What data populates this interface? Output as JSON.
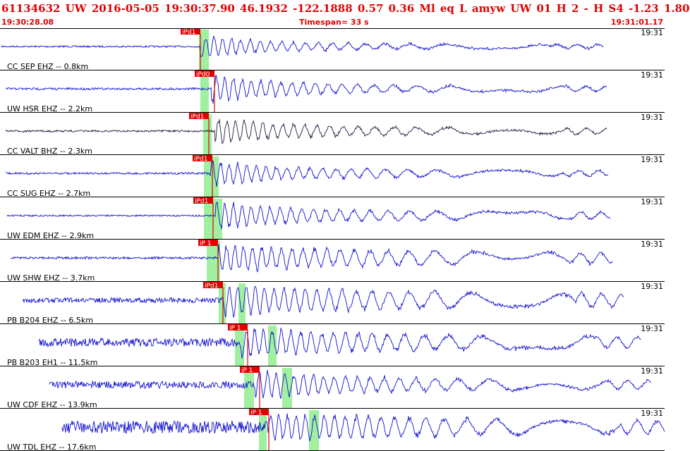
{
  "header": {
    "title": "61134632 UW 2016-05-05 19:30:37.90   46.1932 -122.1888   0.57  0.36 Ml  eq  L amyw    UW 01  H   2  -  H S4   -1.23  1.80",
    "start_time": "19:30:28.08",
    "timespan": "Timespan=  33 s",
    "end_time": "19:31:01.17"
  },
  "colors": {
    "trace": "#1010d0",
    "trace_alt": "#202040",
    "label": "#000000",
    "pick": "#e00000",
    "highlight": "#a0f0a0",
    "border": "#000000"
  },
  "traces": [
    {
      "label": "CC SEP EHZ -- 0.8km",
      "pick": "iPd1",
      "time_label": "19:31"
    },
    {
      "label": "UW HSR EHZ -- 2.2km",
      "pick": "iPd0",
      "time_label": "19:31"
    },
    {
      "label": "CC VALT BHZ -- 2.3km",
      "pick": "iPd1",
      "time_label": "19:31"
    },
    {
      "label": "CC SUG EHZ -- 2.7km",
      "pick": "iPd1",
      "time_label": "19:31"
    },
    {
      "label": "UW EDM EHZ -- 2.9km",
      "pick": "iPd1",
      "time_label": "19:31"
    },
    {
      "label": "UW SHW EHZ -- 3.7km",
      "pick": "iP 1",
      "time_label": "19:31"
    },
    {
      "label": "PB B204 EHZ -- 6.5km",
      "pick": "iPd1",
      "time_label": "19:31"
    },
    {
      "label": "PB B203 EH1 -- 11.5km",
      "pick": "iP 1",
      "time_label": "19:31"
    },
    {
      "label": "UW CDF EHZ -- 13.9km",
      "pick": "iP 1",
      "time_label": "19:31"
    },
    {
      "label": "UW TDL EHZ -- 17.6km",
      "pick": "iP 1",
      "time_label": "19:31"
    }
  ]
}
